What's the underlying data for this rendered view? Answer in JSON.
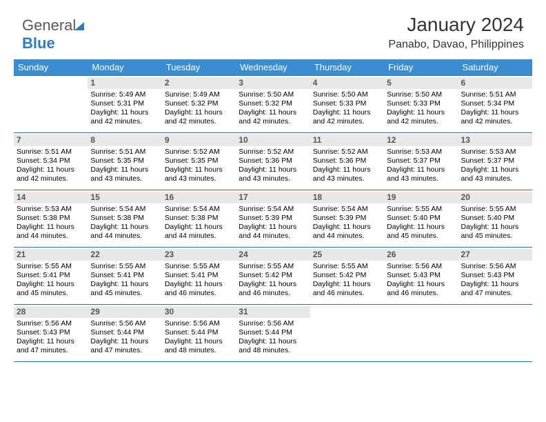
{
  "colors": {
    "header_bg": "#3a8dd0",
    "header_text": "#ffffff",
    "rule": "#2d6fa8",
    "daynum_bg": "#e8e8e8",
    "daynum_text": "#555555",
    "body_text": "#000000",
    "bg": "#ffffff"
  },
  "logo": {
    "part1": "General",
    "part2": "Blue"
  },
  "title": "January 2024",
  "location": "Panabo, Davao, Philippines",
  "day_labels": [
    "Sunday",
    "Monday",
    "Tuesday",
    "Wednesday",
    "Thursday",
    "Friday",
    "Saturday"
  ],
  "sunrise_label": "Sunrise:",
  "sunset_label": "Sunset:",
  "daylight_label": "Daylight:",
  "weeks": [
    [
      null,
      {
        "n": "1",
        "sr": "5:49 AM",
        "ss": "5:31 PM",
        "dl": "11 hours and 42 minutes."
      },
      {
        "n": "2",
        "sr": "5:49 AM",
        "ss": "5:32 PM",
        "dl": "11 hours and 42 minutes."
      },
      {
        "n": "3",
        "sr": "5:50 AM",
        "ss": "5:32 PM",
        "dl": "11 hours and 42 minutes."
      },
      {
        "n": "4",
        "sr": "5:50 AM",
        "ss": "5:33 PM",
        "dl": "11 hours and 42 minutes."
      },
      {
        "n": "5",
        "sr": "5:50 AM",
        "ss": "5:33 PM",
        "dl": "11 hours and 42 minutes."
      },
      {
        "n": "6",
        "sr": "5:51 AM",
        "ss": "5:34 PM",
        "dl": "11 hours and 42 minutes."
      }
    ],
    [
      {
        "n": "7",
        "sr": "5:51 AM",
        "ss": "5:34 PM",
        "dl": "11 hours and 42 minutes."
      },
      {
        "n": "8",
        "sr": "5:51 AM",
        "ss": "5:35 PM",
        "dl": "11 hours and 43 minutes."
      },
      {
        "n": "9",
        "sr": "5:52 AM",
        "ss": "5:35 PM",
        "dl": "11 hours and 43 minutes."
      },
      {
        "n": "10",
        "sr": "5:52 AM",
        "ss": "5:36 PM",
        "dl": "11 hours and 43 minutes."
      },
      {
        "n": "11",
        "sr": "5:52 AM",
        "ss": "5:36 PM",
        "dl": "11 hours and 43 minutes."
      },
      {
        "n": "12",
        "sr": "5:53 AM",
        "ss": "5:37 PM",
        "dl": "11 hours and 43 minutes."
      },
      {
        "n": "13",
        "sr": "5:53 AM",
        "ss": "5:37 PM",
        "dl": "11 hours and 43 minutes."
      }
    ],
    [
      {
        "n": "14",
        "sr": "5:53 AM",
        "ss": "5:38 PM",
        "dl": "11 hours and 44 minutes."
      },
      {
        "n": "15",
        "sr": "5:54 AM",
        "ss": "5:38 PM",
        "dl": "11 hours and 44 minutes."
      },
      {
        "n": "16",
        "sr": "5:54 AM",
        "ss": "5:38 PM",
        "dl": "11 hours and 44 minutes."
      },
      {
        "n": "17",
        "sr": "5:54 AM",
        "ss": "5:39 PM",
        "dl": "11 hours and 44 minutes."
      },
      {
        "n": "18",
        "sr": "5:54 AM",
        "ss": "5:39 PM",
        "dl": "11 hours and 44 minutes."
      },
      {
        "n": "19",
        "sr": "5:55 AM",
        "ss": "5:40 PM",
        "dl": "11 hours and 45 minutes."
      },
      {
        "n": "20",
        "sr": "5:55 AM",
        "ss": "5:40 PM",
        "dl": "11 hours and 45 minutes."
      }
    ],
    [
      {
        "n": "21",
        "sr": "5:55 AM",
        "ss": "5:41 PM",
        "dl": "11 hours and 45 minutes."
      },
      {
        "n": "22",
        "sr": "5:55 AM",
        "ss": "5:41 PM",
        "dl": "11 hours and 45 minutes."
      },
      {
        "n": "23",
        "sr": "5:55 AM",
        "ss": "5:41 PM",
        "dl": "11 hours and 46 minutes."
      },
      {
        "n": "24",
        "sr": "5:55 AM",
        "ss": "5:42 PM",
        "dl": "11 hours and 46 minutes."
      },
      {
        "n": "25",
        "sr": "5:55 AM",
        "ss": "5:42 PM",
        "dl": "11 hours and 46 minutes."
      },
      {
        "n": "26",
        "sr": "5:56 AM",
        "ss": "5:43 PM",
        "dl": "11 hours and 46 minutes."
      },
      {
        "n": "27",
        "sr": "5:56 AM",
        "ss": "5:43 PM",
        "dl": "11 hours and 47 minutes."
      }
    ],
    [
      {
        "n": "28",
        "sr": "5:56 AM",
        "ss": "5:43 PM",
        "dl": "11 hours and 47 minutes."
      },
      {
        "n": "29",
        "sr": "5:56 AM",
        "ss": "5:44 PM",
        "dl": "11 hours and 47 minutes."
      },
      {
        "n": "30",
        "sr": "5:56 AM",
        "ss": "5:44 PM",
        "dl": "11 hours and 48 minutes."
      },
      {
        "n": "31",
        "sr": "5:56 AM",
        "ss": "5:44 PM",
        "dl": "11 hours and 48 minutes."
      },
      null,
      null,
      null
    ]
  ]
}
